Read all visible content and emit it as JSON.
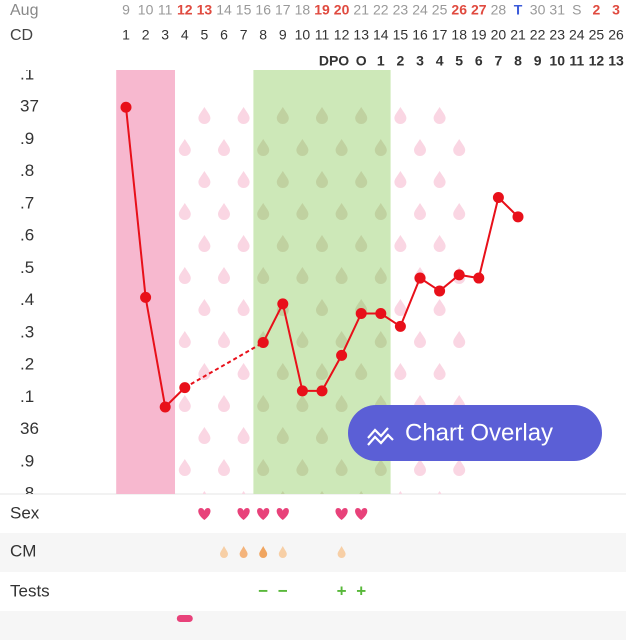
{
  "chart_data": {
    "type": "line",
    "month": "Aug",
    "cd_label": "CD",
    "dates": [
      "9",
      "10",
      "11",
      "12",
      "13",
      "14",
      "15",
      "16",
      "17",
      "18",
      "19",
      "20",
      "21",
      "22",
      "23",
      "24",
      "25",
      "26",
      "27",
      "28",
      "T",
      "30",
      "31",
      "S",
      "2",
      "3"
    ],
    "date_colors": [
      "#999",
      "#999",
      "#999",
      "#e04a3f",
      "#e04a3f",
      "#999",
      "#999",
      "#999",
      "#999",
      "#999",
      "#e04a3f",
      "#e04a3f",
      "#999",
      "#999",
      "#999",
      "#999",
      "#999",
      "#e04a3f",
      "#e04a3f",
      "#999",
      "#3b5bd9",
      "#999",
      "#999",
      "#999",
      "#e04a3f",
      "#e04a3f"
    ],
    "categories": [
      1,
      2,
      3,
      4,
      5,
      6,
      7,
      8,
      9,
      10,
      11,
      12,
      13,
      14,
      15,
      16,
      17,
      18,
      19,
      20,
      21,
      22,
      23,
      24,
      25,
      26
    ],
    "dpo_label": "DPO",
    "dpo": [
      null,
      null,
      null,
      null,
      null,
      null,
      null,
      null,
      null,
      null,
      null,
      null,
      "O",
      1,
      2,
      3,
      4,
      5,
      6,
      7,
      8,
      9,
      10,
      11,
      12,
      13
    ],
    "values": [
      37.0,
      36.41,
      36.07,
      36.13,
      null,
      null,
      null,
      36.27,
      36.39,
      36.12,
      36.12,
      36.23,
      36.36,
      36.36,
      36.32,
      36.47,
      36.43,
      36.48,
      36.47,
      36.72,
      36.66,
      null,
      null,
      null,
      null,
      null
    ],
    "color": "#e8101a",
    "ylim": [
      35.8,
      37.1
    ],
    "yticks": [
      {
        "value": 37.1,
        "label": ".1"
      },
      37,
      {
        "value": 36.9,
        "label": ".9"
      },
      {
        "value": 36.8,
        "label": ".8"
      },
      {
        "value": 36.7,
        "label": ".7"
      },
      {
        "value": 36.6,
        "label": ".6"
      },
      {
        "value": 36.5,
        "label": ".5"
      },
      {
        "value": 36.4,
        "label": ".4"
      },
      {
        "value": 36.3,
        "label": ".3"
      },
      {
        "value": 36.2,
        "label": ".2"
      },
      {
        "value": 36.1,
        "label": ".1"
      },
      36,
      {
        "value": 35.9,
        "label": ".9"
      },
      {
        "value": 35.8,
        "label": ".8"
      }
    ],
    "grid": false,
    "period_range": [
      1,
      3
    ],
    "period_color": "#f7b8cf",
    "fertile_range": [
      8,
      14
    ],
    "fertile_color": "#cde8b8",
    "rows": [
      {
        "label": "Sex",
        "kind": "heart",
        "color": "#e8427a",
        "marks": [
          5,
          7,
          8,
          9,
          12,
          13
        ]
      },
      {
        "label": "CM",
        "kind": "drop",
        "marks": [
          6,
          7,
          8,
          9,
          12
        ],
        "colors": [
          "#f7cfa6",
          "#f4b47c",
          "#f0a560",
          "#f7cfa6",
          "#f7cfa6"
        ]
      },
      {
        "label": "Tests",
        "kind": "text",
        "color": "#58b83a",
        "marks": [
          8,
          9,
          12,
          13
        ],
        "texts": [
          "−",
          "−",
          "+",
          "+"
        ]
      },
      {
        "label": null,
        "kind": "pill",
        "color": "#e8427a",
        "marks": [
          4
        ]
      }
    ]
  },
  "button": {
    "label": "Chart Overlay"
  }
}
